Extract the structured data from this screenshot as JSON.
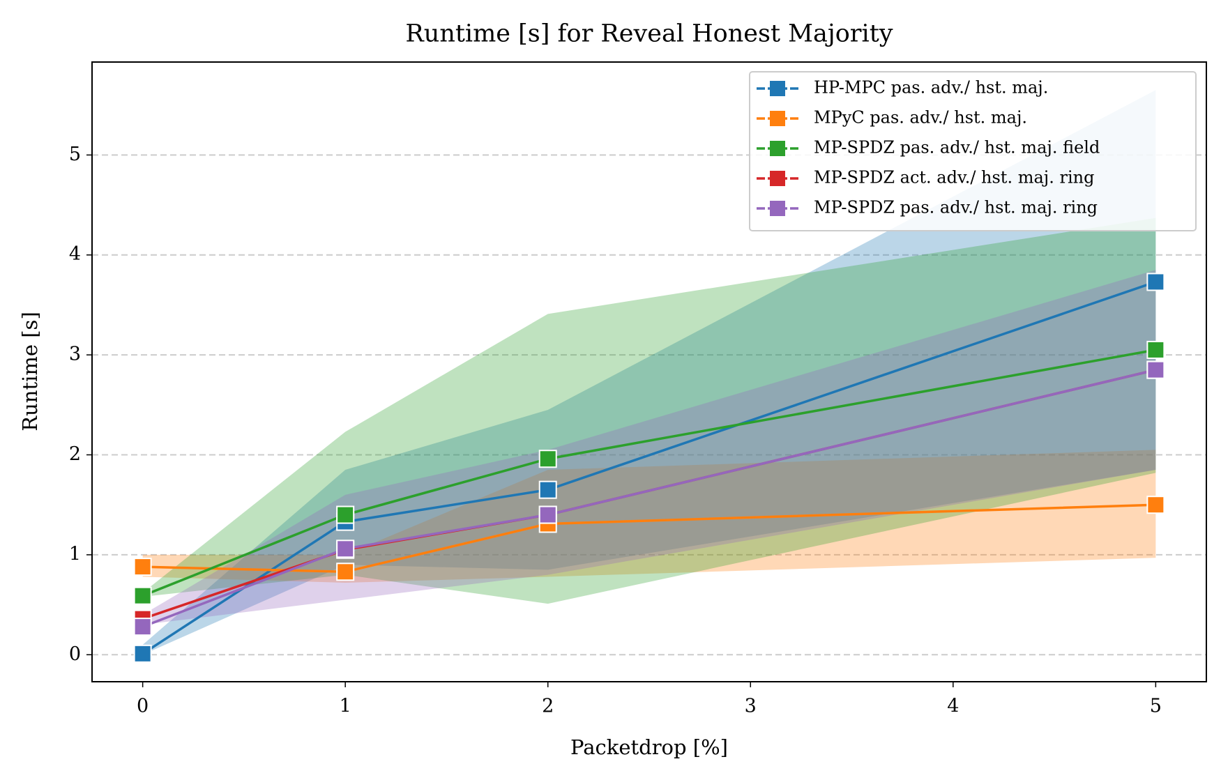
{
  "chart_data": {
    "type": "line",
    "title": "Runtime [s] for Reveal Honest Majority",
    "xlabel": "Packetdrop [%]",
    "ylabel": "Runtime [s]",
    "x": [
      0,
      1,
      2,
      5
    ],
    "series": [
      {
        "name": "HP-MPC pas. adv./ hst. maj.",
        "color": "#1f77b4",
        "values": [
          0.01,
          1.33,
          1.65,
          3.73
        ],
        "lower": [
          0.0,
          0.9,
          0.85,
          1.85
        ],
        "upper": [
          0.1,
          1.85,
          2.45,
          5.65
        ]
      },
      {
        "name": "MPyC pas. adv./ hst. maj.",
        "color": "#ff7f0e",
        "values": [
          0.88,
          0.83,
          1.31,
          1.5
        ],
        "lower": [
          0.78,
          0.72,
          0.78,
          0.97
        ],
        "upper": [
          1.0,
          1.0,
          1.85,
          2.05
        ]
      },
      {
        "name": "MP-SPDZ pas. adv./ hst. maj. field",
        "color": "#2ca02c",
        "values": [
          0.59,
          1.4,
          1.96,
          3.05
        ],
        "lower": [
          0.58,
          0.8,
          0.51,
          1.82
        ],
        "upper": [
          0.62,
          2.23,
          3.41,
          4.37
        ]
      },
      {
        "name": "MP-SPDZ act. adv./ hst. maj. ring",
        "color": "#d62728",
        "values": [
          0.36,
          1.05,
          1.4,
          2.85
        ]
      },
      {
        "name": "MP-SPDZ pas. adv./ hst. maj. ring",
        "color": "#9467bd",
        "values": [
          0.28,
          1.06,
          1.4,
          2.85
        ],
        "lower": [
          0.3,
          0.55,
          0.8,
          1.85
        ],
        "upper": [
          0.4,
          1.6,
          2.05,
          3.85
        ]
      }
    ],
    "xlim": [
      -0.25,
      5.25
    ],
    "ylim": [
      -0.27,
      5.93
    ],
    "xticks": [
      0,
      1,
      2,
      3,
      4,
      5
    ],
    "yticks": [
      0,
      1,
      2,
      3,
      4,
      5
    ],
    "grid": true,
    "legend": "upper right"
  }
}
